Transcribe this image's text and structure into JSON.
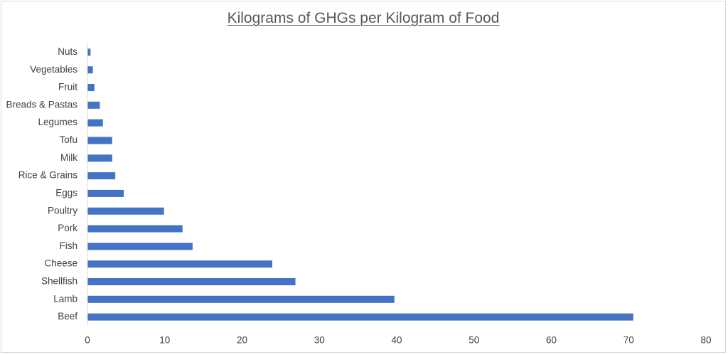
{
  "chart_data": {
    "type": "bar",
    "orientation": "horizontal",
    "title": "Kilograms of GHGs per Kilogram of Food",
    "xlabel": "",
    "ylabel": "",
    "categories": [
      "Nuts",
      "Vegetables",
      "Fruit",
      "Breads & Pastas",
      "Legumes",
      "Tofu",
      "Milk",
      "Rice & Grains",
      "Eggs",
      "Poultry",
      "Pork",
      "Fish",
      "Cheese",
      "Shellfish",
      "Lamb",
      "Beef"
    ],
    "values": [
      0.4,
      0.7,
      0.9,
      1.6,
      2.0,
      3.2,
      3.2,
      3.6,
      4.7,
      9.9,
      12.3,
      13.6,
      23.9,
      26.9,
      39.7,
      70.6
    ],
    "xlim": [
      0,
      80
    ],
    "xticks": [
      0,
      10,
      20,
      30,
      40,
      50,
      60,
      70,
      80
    ],
    "grid": false,
    "legend": "none",
    "bar_color": "#4472c4"
  }
}
